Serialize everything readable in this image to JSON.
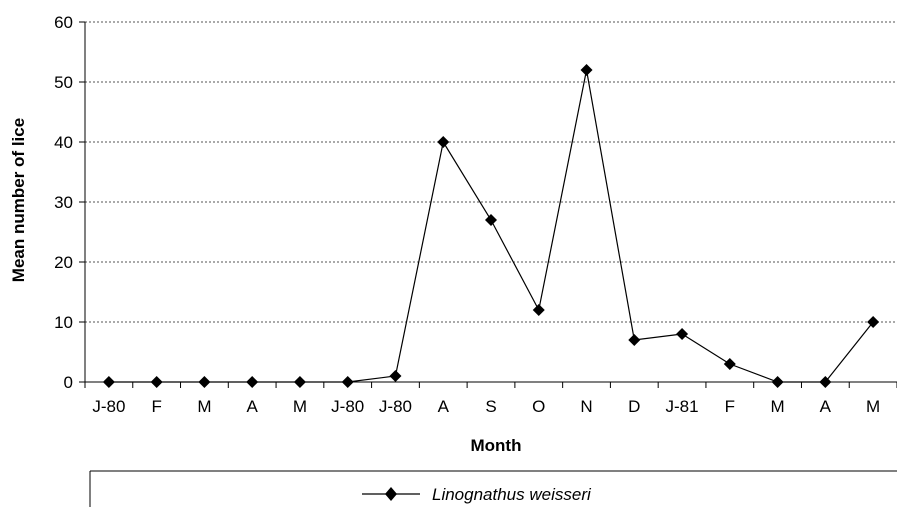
{
  "chart_data": {
    "type": "line",
    "title": "",
    "xlabel": "Month",
    "ylabel": "Mean number of lice",
    "categories": [
      "J-80",
      "F",
      "M",
      "A",
      "M",
      "J-80",
      "J-80",
      "A",
      "S",
      "O",
      "N",
      "D",
      "J-81",
      "F",
      "M",
      "A",
      "M"
    ],
    "series": [
      {
        "name": "Linognathus weisseri",
        "values": [
          0,
          0,
          0,
          0,
          0,
          0,
          1,
          40,
          27,
          12,
          52,
          7,
          8,
          3,
          0,
          0,
          10
        ]
      }
    ],
    "ylim": [
      0,
      60
    ],
    "yticks": [
      0,
      10,
      20,
      30,
      40,
      50,
      60
    ],
    "grid": "horizontal dotted",
    "legend_position": "bottom",
    "marker": "diamond",
    "line_color": "#000000"
  }
}
